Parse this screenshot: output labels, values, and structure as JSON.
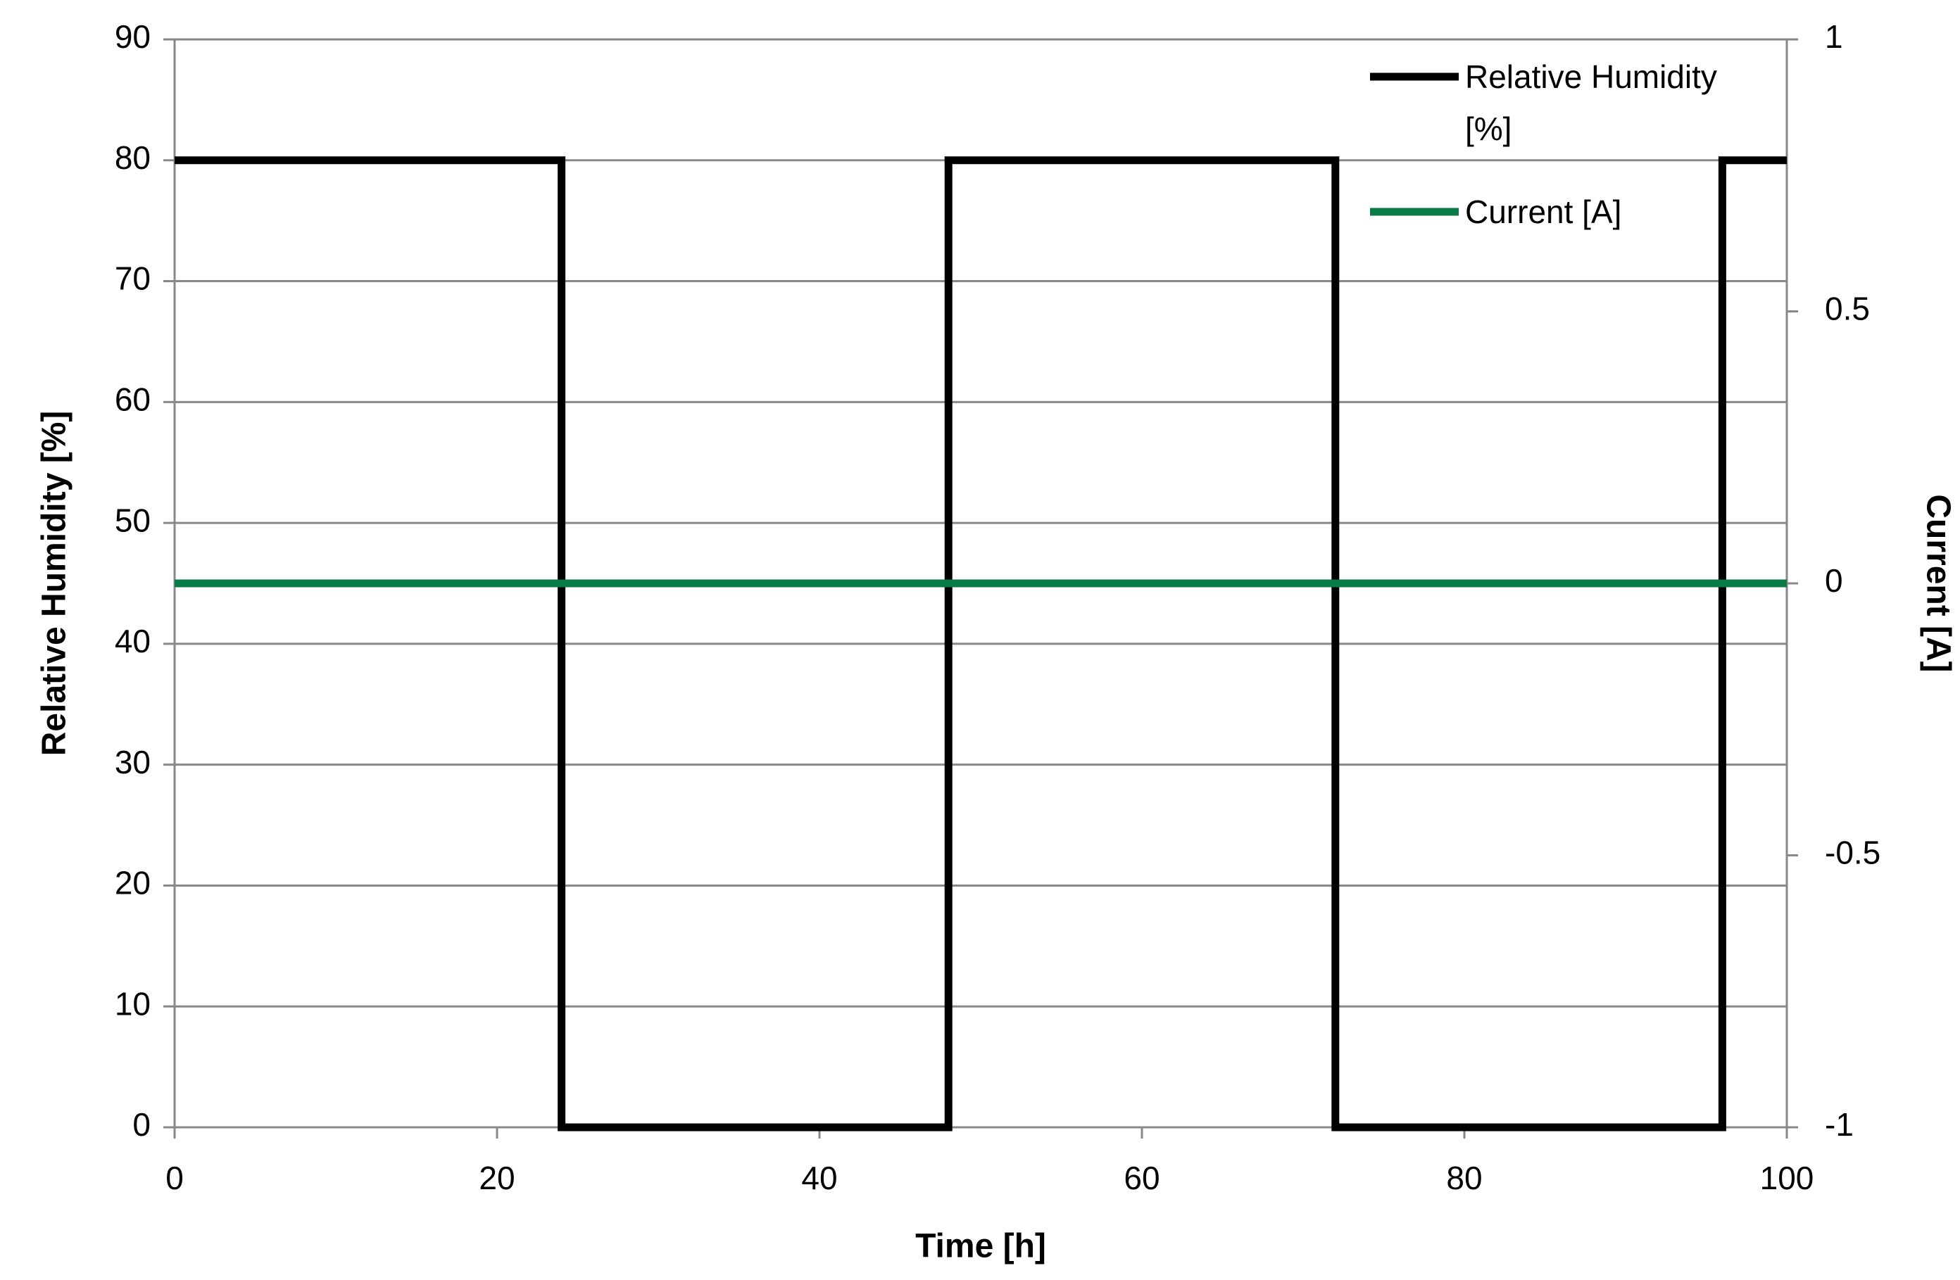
{
  "chart_data": {
    "type": "line",
    "x_label": "Time [h]",
    "y_label": "Relative Humidity [%]",
    "y2_label": "Current [A]",
    "x": [
      0,
      24,
      24,
      48,
      48,
      72,
      72,
      96,
      96,
      100
    ],
    "series": [
      {
        "name": "Relative Humidity [%]",
        "color": "#000000",
        "values": [
          80,
          80,
          0,
          0,
          80,
          80,
          0,
          0,
          80,
          80
        ]
      },
      {
        "name": "Current [A]",
        "color": "#0a7a45",
        "axis": "y2",
        "values": [
          0,
          0,
          0,
          0,
          0,
          0,
          0,
          0,
          0,
          0
        ]
      }
    ],
    "xlim": [
      0,
      100
    ],
    "xticks": [
      0,
      20,
      40,
      60,
      80,
      100
    ],
    "ylim": [
      0,
      90
    ],
    "yticks": [
      0,
      10,
      20,
      30,
      40,
      50,
      60,
      70,
      80,
      90
    ],
    "y2lim": [
      -1,
      1
    ],
    "y2ticks": [
      -1,
      -0.5,
      0,
      0.5,
      1
    ],
    "grid": true,
    "legend": "top-right"
  }
}
